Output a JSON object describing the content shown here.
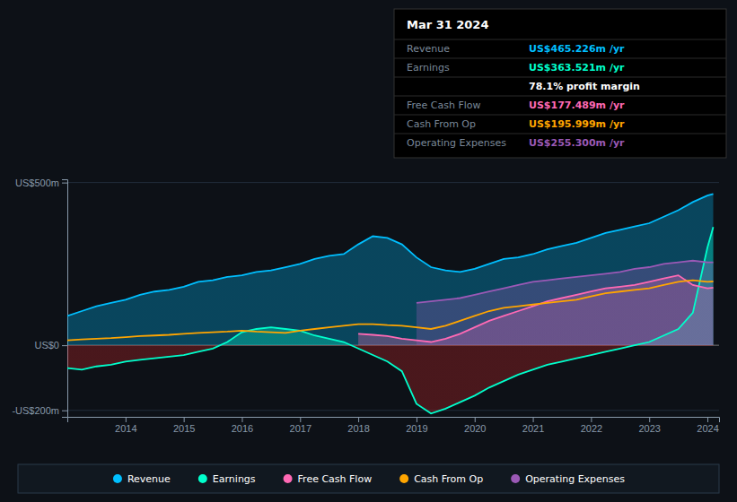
{
  "chart_data": {
    "type": "area",
    "title": "Mar 31 2024",
    "x": [
      2013.0,
      2013.25,
      2013.5,
      2013.75,
      2014.0,
      2014.25,
      2014.5,
      2014.75,
      2015.0,
      2015.25,
      2015.5,
      2015.75,
      2016.0,
      2016.25,
      2016.5,
      2016.75,
      2017.0,
      2017.25,
      2017.5,
      2017.75,
      2018.0,
      2018.25,
      2018.5,
      2018.75,
      2019.0,
      2019.25,
      2019.5,
      2019.75,
      2020.0,
      2020.25,
      2020.5,
      2020.75,
      2021.0,
      2021.25,
      2021.5,
      2021.75,
      2022.0,
      2022.25,
      2022.5,
      2022.75,
      2023.0,
      2023.25,
      2023.5,
      2023.75,
      2024.0,
      2024.1
    ],
    "series": [
      {
        "name": "Revenue",
        "color": "#00bfff",
        "values": [
          90,
          105,
          120,
          130,
          140,
          155,
          165,
          170,
          180,
          195,
          200,
          210,
          215,
          225,
          230,
          240,
          250,
          265,
          275,
          280,
          310,
          335,
          330,
          310,
          270,
          240,
          230,
          225,
          235,
          250,
          265,
          270,
          280,
          295,
          305,
          315,
          330,
          345,
          355,
          365,
          375,
          395,
          415,
          440,
          460,
          465
        ]
      },
      {
        "name": "Earnings",
        "color": "#00ffcc",
        "values": [
          -70,
          -75,
          -65,
          -60,
          -50,
          -45,
          -40,
          -35,
          -30,
          -20,
          -10,
          10,
          40,
          50,
          55,
          50,
          45,
          30,
          20,
          10,
          -10,
          -30,
          -50,
          -80,
          -180,
          -210,
          -195,
          -175,
          -155,
          -130,
          -110,
          -90,
          -75,
          -60,
          -50,
          -40,
          -30,
          -20,
          -10,
          0,
          10,
          30,
          50,
          100,
          300,
          363
        ]
      },
      {
        "name": "Free Cash Flow",
        "color": "#ff69b4",
        "values": [
          null,
          null,
          null,
          null,
          null,
          null,
          null,
          null,
          null,
          null,
          null,
          null,
          null,
          null,
          null,
          null,
          null,
          null,
          null,
          null,
          35,
          32,
          28,
          20,
          15,
          10,
          20,
          35,
          55,
          75,
          90,
          105,
          120,
          135,
          145,
          155,
          165,
          175,
          180,
          185,
          195,
          205,
          215,
          185,
          175,
          177
        ]
      },
      {
        "name": "Cash From Op",
        "color": "#ffa500",
        "type": "line",
        "values": [
          15,
          18,
          20,
          22,
          25,
          28,
          30,
          32,
          35,
          38,
          40,
          42,
          45,
          42,
          40,
          38,
          45,
          50,
          55,
          60,
          65,
          65,
          62,
          60,
          55,
          50,
          60,
          75,
          90,
          105,
          115,
          120,
          125,
          130,
          135,
          140,
          150,
          160,
          165,
          170,
          175,
          185,
          195,
          200,
          195,
          196
        ]
      },
      {
        "name": "Operating Expenses",
        "color": "#9b59b6",
        "values": [
          null,
          null,
          null,
          null,
          null,
          null,
          null,
          null,
          null,
          null,
          null,
          null,
          null,
          null,
          null,
          null,
          null,
          null,
          null,
          null,
          null,
          null,
          null,
          null,
          130,
          135,
          140,
          145,
          155,
          165,
          175,
          185,
          195,
          200,
          205,
          210,
          215,
          220,
          225,
          235,
          240,
          250,
          255,
          260,
          255,
          255
        ]
      }
    ],
    "xlim": [
      2013.0,
      2024.2
    ],
    "xticks": [
      2014,
      2015,
      2016,
      2017,
      2018,
      2019,
      2020,
      2021,
      2022,
      2023,
      2024
    ],
    "ylim": [
      -220,
      510
    ],
    "yticks": [
      {
        "value": -200,
        "label": "-US$200m"
      },
      {
        "value": 0,
        "label": "US$0"
      },
      {
        "value": 500,
        "label": "US$500m"
      }
    ],
    "grid": true,
    "legend": "bottom",
    "annotations": [
      {
        "label": "Revenue",
        "text": "US$465.226m /yr",
        "color": "#00bfff"
      },
      {
        "label": "Earnings",
        "text": "US$363.521m /yr",
        "color": "#00ffcc"
      },
      {
        "text": "78.1% profit margin",
        "color": "#ffffff"
      },
      {
        "label": "Free Cash Flow",
        "text": "US$177.489m /yr",
        "color": "#ff69b4"
      },
      {
        "label": "Cash From Op",
        "text": "US$195.999m /yr",
        "color": "#ffa500"
      },
      {
        "label": "Operating Expenses",
        "text": "US$255.300m /yr",
        "color": "#9b59b6"
      }
    ]
  }
}
